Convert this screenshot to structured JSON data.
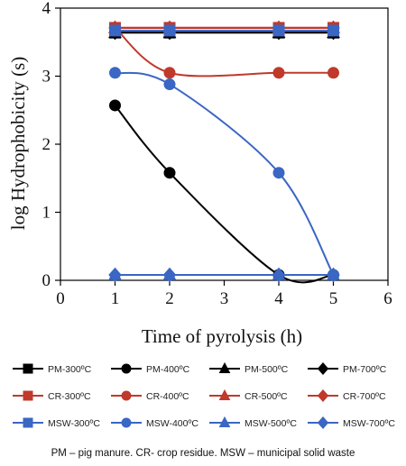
{
  "chart_data": {
    "type": "line",
    "xlabel": "Time of pyrolysis (h)",
    "ylabel": "log Hydrophobicity (s)",
    "xlim": [
      0,
      6
    ],
    "ylim": [
      0,
      4
    ],
    "xticks": [
      0,
      1,
      2,
      3,
      4,
      5,
      6
    ],
    "yticks": [
      0,
      1,
      2,
      3,
      4
    ],
    "grid": false,
    "legend_position": "bottom",
    "colors": {
      "PM": "#000000",
      "CR": "#c0392b",
      "MSW": "#3a66c4"
    },
    "series": [
      {
        "name": "PM-300ºC",
        "group": "PM",
        "marker": "square",
        "x": [
          1,
          2,
          4,
          5
        ],
        "y": [
          3.64,
          3.64,
          3.64,
          3.64
        ]
      },
      {
        "name": "PM-400ºC",
        "group": "PM",
        "marker": "circle",
        "x": [
          1,
          2,
          4,
          5
        ],
        "y": [
          2.57,
          1.58,
          0.08,
          0.08
        ]
      },
      {
        "name": "PM-500ºC",
        "group": "PM",
        "marker": "triangle",
        "x": [
          1,
          2,
          4,
          5
        ],
        "y": [
          3.64,
          3.64,
          3.64,
          3.64
        ]
      },
      {
        "name": "PM-700ºC",
        "group": "PM",
        "marker": "diamond",
        "x": [
          1,
          2,
          4,
          5
        ],
        "y": [
          3.64,
          3.64,
          3.64,
          3.64
        ]
      },
      {
        "name": "CR-300ºC",
        "group": "CR",
        "marker": "square",
        "x": [
          1,
          2,
          4,
          5
        ],
        "y": [
          3.71,
          3.71,
          3.71,
          3.71
        ]
      },
      {
        "name": "CR-400ºC",
        "group": "CR",
        "marker": "circle",
        "x": [
          1,
          2,
          4,
          5
        ],
        "y": [
          3.71,
          3.05,
          3.05,
          3.05
        ]
      },
      {
        "name": "CR-500ºC",
        "group": "CR",
        "marker": "triangle",
        "x": [
          1,
          2,
          4,
          5
        ],
        "y": [
          3.71,
          3.71,
          3.71,
          3.71
        ]
      },
      {
        "name": "CR-700ºC",
        "group": "CR",
        "marker": "diamond",
        "x": [
          1,
          2,
          4,
          5
        ],
        "y": [
          3.71,
          3.71,
          3.71,
          3.71
        ]
      },
      {
        "name": "MSW-300ºC",
        "group": "MSW",
        "marker": "square",
        "x": [
          1,
          2,
          4,
          5
        ],
        "y": [
          3.67,
          3.67,
          3.67,
          3.67
        ]
      },
      {
        "name": "MSW-400ºC",
        "group": "MSW",
        "marker": "circle",
        "x": [
          1,
          2,
          4,
          5
        ],
        "y": [
          3.05,
          2.88,
          1.58,
          0.08
        ]
      },
      {
        "name": "MSW-500ºC",
        "group": "MSW",
        "marker": "triangle",
        "x": [
          1,
          2,
          4,
          5
        ],
        "y": [
          0.08,
          0.08,
          0.08,
          0.08
        ]
      },
      {
        "name": "MSW-700ºC",
        "group": "MSW",
        "marker": "diamond",
        "x": [
          1,
          2,
          4,
          5
        ],
        "y": [
          0.08,
          0.08,
          0.08,
          0.08
        ]
      }
    ],
    "footnote": "PM – pig manure.  CR- crop residue. MSW – municipal solid waste"
  }
}
